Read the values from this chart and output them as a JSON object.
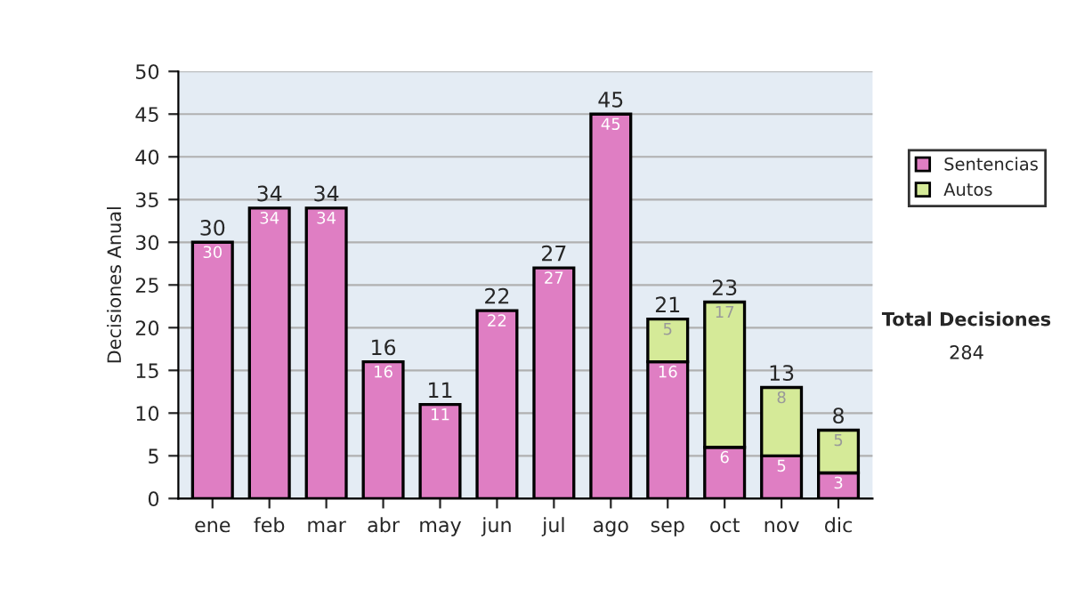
{
  "chart_data": {
    "type": "bar",
    "stacked": true,
    "ylabel": "Decisiones Anual",
    "categories": [
      "ene",
      "feb",
      "mar",
      "abr",
      "may",
      "jun",
      "jul",
      "ago",
      "sep",
      "oct",
      "nov",
      "dic"
    ],
    "series": [
      {
        "name": "Sentencias",
        "color": "#df7ec3",
        "values": [
          30,
          34,
          34,
          16,
          11,
          22,
          27,
          45,
          16,
          6,
          5,
          3
        ],
        "value_labels": [
          "30",
          "34",
          "34",
          "16",
          "11",
          "22",
          "27",
          "45",
          "16",
          "6",
          "5",
          "3"
        ]
      },
      {
        "name": "Autos",
        "color": "#d5ea98",
        "values": [
          null,
          null,
          null,
          null,
          null,
          null,
          null,
          null,
          5,
          17,
          8,
          5
        ],
        "value_labels": [
          null,
          null,
          null,
          null,
          null,
          null,
          null,
          null,
          "5",
          "17",
          "8",
          "5"
        ]
      }
    ],
    "totals": [
      "30",
      "34",
      "34",
      "16",
      "11",
      "22",
      "27",
      "45",
      "21",
      "23",
      "13",
      "8"
    ],
    "ylim": [
      0,
      50
    ],
    "yticks": [
      0,
      5,
      10,
      15,
      20,
      25,
      30,
      35,
      40,
      45,
      50
    ],
    "grid": "y",
    "legend": "right",
    "annotations": [
      "Total Decisiones",
      "284"
    ]
  }
}
